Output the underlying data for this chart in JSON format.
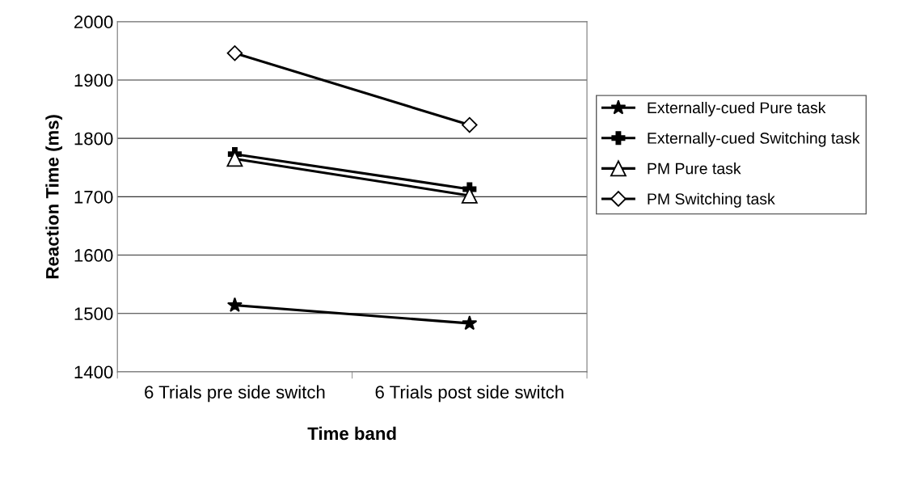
{
  "chart_data": {
    "type": "line",
    "xlabel": "Time band",
    "ylabel": "Reaction Time (ms)",
    "categories": [
      "6 Trials pre side switch",
      "6 Trials post side switch"
    ],
    "series": [
      {
        "name": "Externally-cued Pure task",
        "color": "#000000",
        "marker": "star",
        "values": [
          1514,
          1483
        ]
      },
      {
        "name": "Externally-cued Switching task",
        "color": "#000000",
        "marker": "cross",
        "values": [
          1773,
          1713
        ]
      },
      {
        "name": "PM Pure task",
        "color": "#000000",
        "marker": "triangle",
        "values": [
          1765,
          1702
        ]
      },
      {
        "name": "PM Switching task",
        "color": "#000000",
        "marker": "diamond",
        "values": [
          1946,
          1823
        ]
      }
    ],
    "ylim": [
      1400,
      2000
    ],
    "yticks": [
      1400,
      1500,
      1600,
      1700,
      1800,
      1900,
      2000
    ],
    "grid": "y",
    "legend": "right",
    "line_style": "solid"
  }
}
